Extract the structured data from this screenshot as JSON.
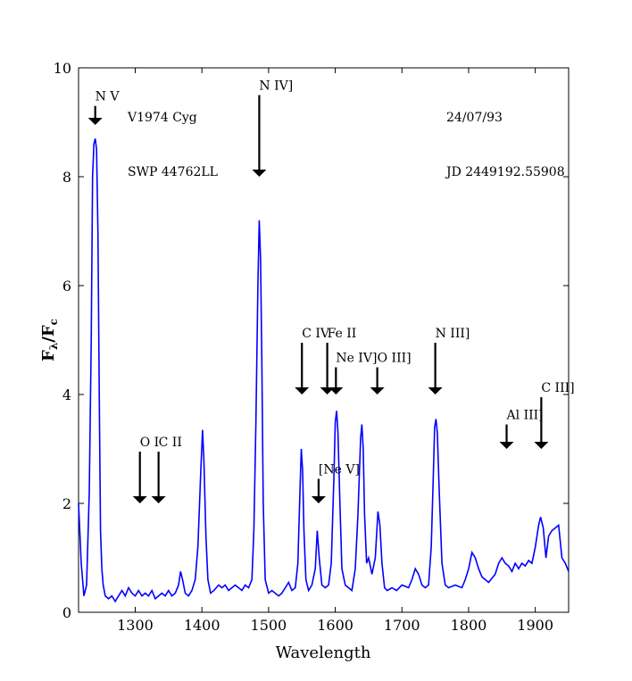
{
  "chart_data": {
    "type": "line",
    "title": "",
    "xlabel": "Wavelength",
    "ylabel": "F_λ/F_c",
    "ylabel_main": "F",
    "ylabel_sub1": "λ",
    "ylabel_sub2": "c",
    "xlim": [
      1215,
      1950
    ],
    "ylim": [
      0,
      10
    ],
    "xticks": [
      1300,
      1400,
      1500,
      1600,
      1700,
      1800,
      1900
    ],
    "yticks": [
      0,
      2,
      4,
      6,
      8,
      10
    ],
    "grid": false,
    "line_color": "#0000ff",
    "info": {
      "object": "V1974 Cyg",
      "date": "24/07/93",
      "spectrum": "SWP 44762LL",
      "jd": "JD 2449192.55908"
    },
    "annotations": [
      {
        "label": "N V",
        "x": 1240,
        "y_top": 9.3,
        "y_tip": 8.95
      },
      {
        "label": "N IV]",
        "x": 1486,
        "y_top": 9.5,
        "y_tip": 8.0
      },
      {
        "label": "O I",
        "x": 1307,
        "y_top": 2.95,
        "y_tip": 2.0
      },
      {
        "label": "C II",
        "x": 1335,
        "y_top": 2.95,
        "y_tip": 2.0
      },
      {
        "label": "C IV",
        "x": 1550,
        "y_top": 4.95,
        "y_tip": 4.0
      },
      {
        "label": "Fe II",
        "x": 1588,
        "y_top": 4.95,
        "y_tip": 4.0
      },
      {
        "label": "Ne IV]",
        "x": 1601,
        "y_top": 4.5,
        "y_tip": 4.0
      },
      {
        "label": "O III]",
        "x": 1663,
        "y_top": 4.5,
        "y_tip": 4.0
      },
      {
        "label": "[Ne V]",
        "x": 1575,
        "y_top": 2.45,
        "y_tip": 2.0
      },
      {
        "label": "N III]",
        "x": 1750,
        "y_top": 4.95,
        "y_tip": 4.0
      },
      {
        "label": "Al III]",
        "x": 1857,
        "y_top": 3.45,
        "y_tip": 3.0
      },
      {
        "label": "C III]",
        "x": 1909,
        "y_top": 3.95,
        "y_tip": 3.0
      }
    ],
    "series": [
      {
        "x": [
          1215,
          1219,
          1223,
          1227,
          1231,
          1234,
          1236,
          1238,
          1240,
          1242,
          1244,
          1246,
          1248,
          1250,
          1252,
          1255,
          1260,
          1265,
          1270,
          1275,
          1280,
          1285,
          1290,
          1295,
          1300,
          1305,
          1310,
          1315,
          1320,
          1325,
          1330,
          1335,
          1340,
          1345,
          1350,
          1355,
          1360,
          1365,
          1368,
          1371,
          1375,
          1380,
          1385,
          1390,
          1394,
          1398,
          1401,
          1403,
          1406,
          1409,
          1413,
          1418,
          1425,
          1430,
          1435,
          1440,
          1445,
          1450,
          1455,
          1460,
          1465,
          1470,
          1475,
          1478,
          1481,
          1484,
          1486,
          1488,
          1490,
          1492,
          1495,
          1500,
          1505,
          1510,
          1515,
          1520,
          1525,
          1530,
          1535,
          1540,
          1544,
          1547,
          1549,
          1551,
          1553,
          1556,
          1560,
          1565,
          1570,
          1573,
          1576,
          1580,
          1585,
          1590,
          1594,
          1598,
          1600,
          1602,
          1604,
          1607,
          1610,
          1615,
          1620,
          1625,
          1630,
          1634,
          1638,
          1640,
          1642,
          1644,
          1647,
          1650,
          1655,
          1660,
          1664,
          1667,
          1670,
          1674,
          1678,
          1685,
          1692,
          1700,
          1710,
          1715,
          1720,
          1725,
          1730,
          1735,
          1740,
          1744,
          1747,
          1749,
          1751,
          1753,
          1756,
          1760,
          1765,
          1770,
          1780,
          1790,
          1795,
          1800,
          1805,
          1810,
          1815,
          1820,
          1830,
          1840,
          1845,
          1850,
          1855,
          1860,
          1865,
          1870,
          1875,
          1880,
          1885,
          1890,
          1895,
          1900,
          1905,
          1908,
          1912,
          1916,
          1920,
          1925,
          1930,
          1935,
          1940,
          1945,
          1950
        ],
        "y": [
          2.0,
          0.9,
          0.3,
          0.5,
          2.2,
          5.0,
          8.0,
          8.6,
          8.7,
          8.5,
          7.0,
          4.0,
          1.5,
          0.8,
          0.5,
          0.3,
          0.25,
          0.3,
          0.2,
          0.3,
          0.4,
          0.3,
          0.45,
          0.35,
          0.3,
          0.4,
          0.3,
          0.35,
          0.3,
          0.4,
          0.25,
          0.3,
          0.35,
          0.3,
          0.4,
          0.3,
          0.35,
          0.5,
          0.75,
          0.6,
          0.35,
          0.3,
          0.4,
          0.6,
          1.2,
          2.5,
          3.35,
          2.8,
          1.4,
          0.6,
          0.35,
          0.4,
          0.5,
          0.45,
          0.5,
          0.4,
          0.45,
          0.5,
          0.45,
          0.4,
          0.5,
          0.45,
          0.6,
          1.5,
          3.5,
          6.0,
          7.2,
          6.5,
          4.5,
          2.0,
          0.6,
          0.35,
          0.4,
          0.35,
          0.3,
          0.35,
          0.45,
          0.55,
          0.4,
          0.45,
          0.9,
          2.2,
          3.0,
          2.6,
          1.5,
          0.6,
          0.4,
          0.5,
          0.8,
          1.5,
          1.0,
          0.5,
          0.45,
          0.5,
          0.9,
          2.5,
          3.5,
          3.7,
          3.3,
          2.0,
          0.8,
          0.5,
          0.45,
          0.4,
          0.8,
          1.8,
          3.2,
          3.45,
          3.0,
          1.8,
          0.9,
          1.0,
          0.7,
          1.0,
          1.85,
          1.6,
          0.9,
          0.45,
          0.4,
          0.45,
          0.4,
          0.5,
          0.45,
          0.6,
          0.8,
          0.7,
          0.5,
          0.45,
          0.5,
          1.2,
          2.5,
          3.4,
          3.55,
          3.3,
          2.2,
          0.9,
          0.5,
          0.45,
          0.5,
          0.45,
          0.6,
          0.8,
          1.1,
          1.0,
          0.8,
          0.65,
          0.55,
          0.7,
          0.9,
          1.0,
          0.9,
          0.85,
          0.75,
          0.9,
          0.8,
          0.9,
          0.85,
          0.95,
          0.9,
          1.2,
          1.6,
          1.75,
          1.55,
          1.0,
          1.4,
          1.5,
          1.55,
          1.6,
          1.0,
          0.9,
          0.75
        ]
      }
    ]
  }
}
